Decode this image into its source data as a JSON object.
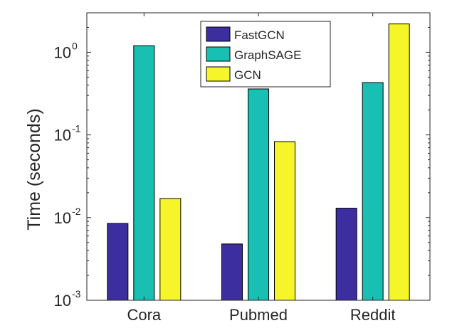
{
  "chart_data": {
    "type": "bar",
    "title": "",
    "xlabel": "",
    "ylabel": "Time (seconds)",
    "yscale": "log",
    "ylim": [
      0.001,
      3
    ],
    "yticks": [
      {
        "value": 0.001,
        "base": "10",
        "exp": "-3"
      },
      {
        "value": 0.01,
        "base": "10",
        "exp": "-2"
      },
      {
        "value": 0.1,
        "base": "10",
        "exp": "-1"
      },
      {
        "value": 1,
        "base": "10",
        "exp": "0"
      }
    ],
    "categories": [
      "Cora",
      "Pubmed",
      "Reddit"
    ],
    "series": [
      {
        "name": "FastGCN",
        "color": "#3c2e9e",
        "values": [
          0.0085,
          0.0048,
          0.013
        ]
      },
      {
        "name": "GraphSAGE",
        "color": "#18bfb2",
        "values": [
          1.2,
          0.36,
          0.43
        ]
      },
      {
        "name": "GCN",
        "color": "#f5f52a",
        "values": [
          0.017,
          0.083,
          2.2
        ]
      }
    ],
    "legend_position": "top-center"
  }
}
